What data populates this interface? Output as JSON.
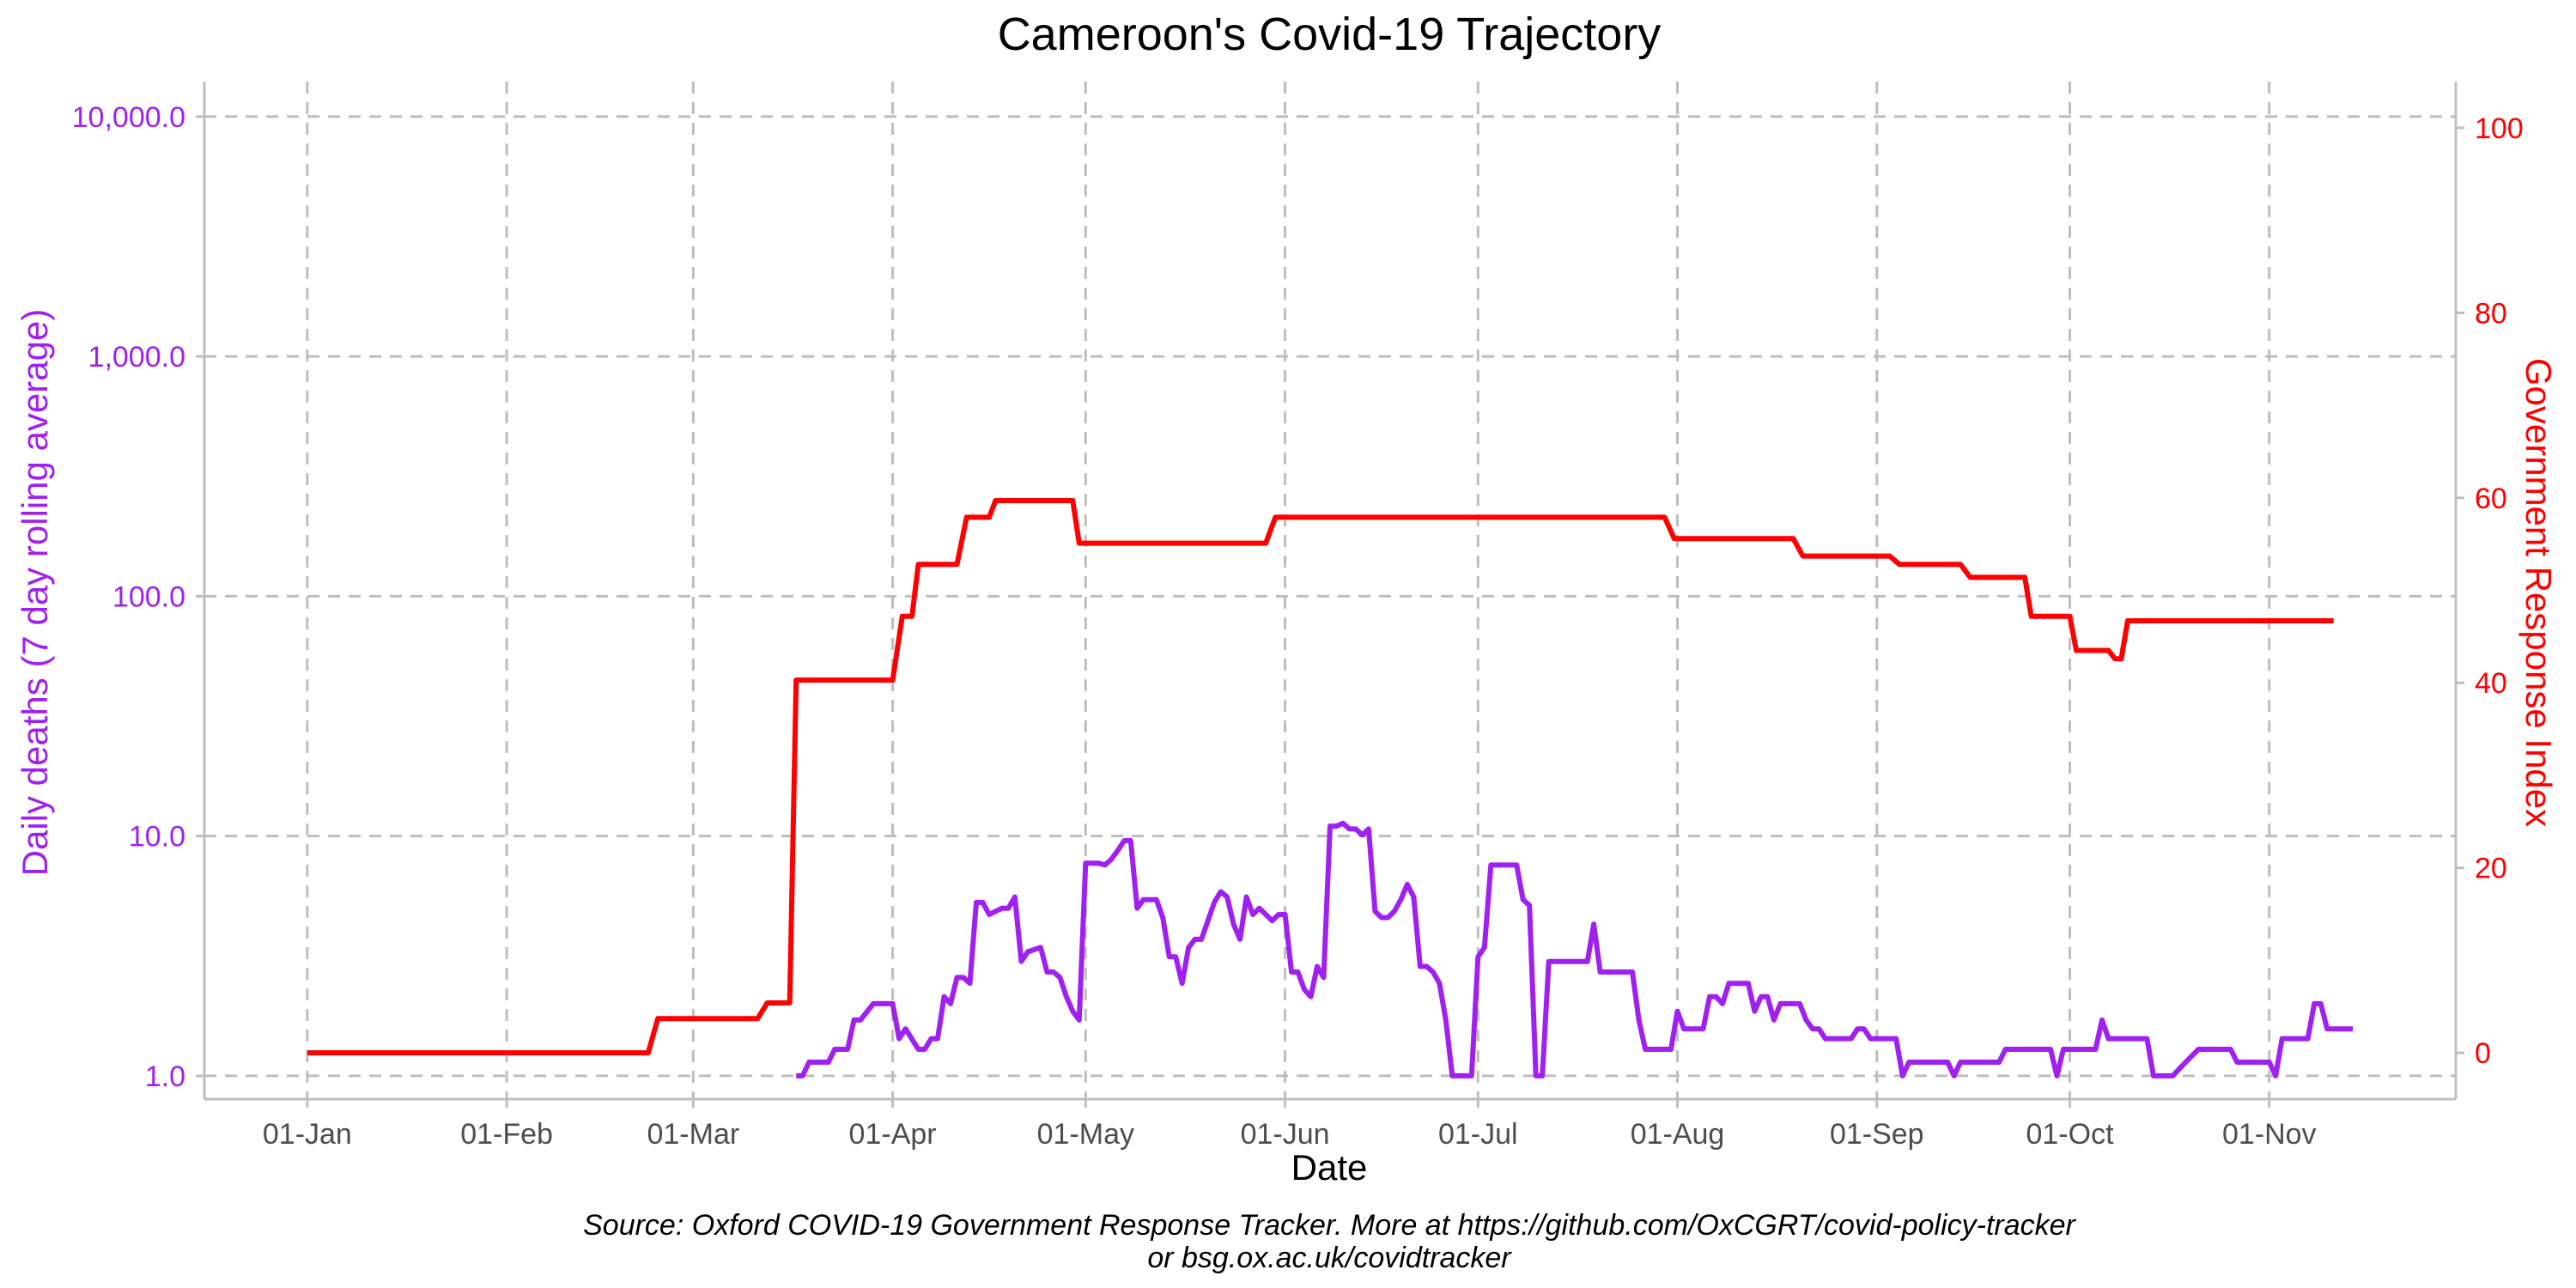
{
  "chart_data": {
    "type": "line",
    "title": "Cameroon's Covid-19 Trajectory",
    "xlabel": "Date",
    "ylabel_left": "Daily deaths (7 day rolling average)",
    "ylabel_right": "Government Response Index",
    "caption_line1": "Source: Oxford COVID-19 Government Response Tracker. More at https://github.com/OxCGRT/covid-policy-tracker",
    "caption_line2": "or bsg.ox.ac.uk/covidtracker",
    "x_ticks": [
      {
        "label": "01-Jan",
        "day": 1
      },
      {
        "label": "01-Feb",
        "day": 32
      },
      {
        "label": "01-Mar",
        "day": 61
      },
      {
        "label": "01-Apr",
        "day": 92
      },
      {
        "label": "01-May",
        "day": 122
      },
      {
        "label": "01-Jun",
        "day": 153
      },
      {
        "label": "01-Jul",
        "day": 183
      },
      {
        "label": "01-Aug",
        "day": 214
      },
      {
        "label": "01-Sep",
        "day": 245
      },
      {
        "label": "01-Oct",
        "day": 275
      },
      {
        "label": "01-Nov",
        "day": 306
      }
    ],
    "xlim_day": [
      -15,
      335
    ],
    "y_left": {
      "scale": "log10",
      "ticks": [
        {
          "value": 1,
          "label": "1.0"
        },
        {
          "value": 10,
          "label": "10.0"
        },
        {
          "value": 100,
          "label": "100.0"
        },
        {
          "value": 1000,
          "label": "1,000.0"
        },
        {
          "value": 10000,
          "label": "10,000.0"
        }
      ],
      "lim": [
        0.8,
        14000
      ]
    },
    "y_right": {
      "scale": "linear",
      "ticks": [
        0,
        20,
        40,
        60,
        80,
        100
      ],
      "lim": [
        -5,
        105
      ]
    },
    "grid": true,
    "colors": {
      "deaths": "#a020f0",
      "response": "#ff0000",
      "grid": "#bebebe",
      "axis": "#bebebe"
    },
    "series": [
      {
        "axis": "right",
        "points": [
          [
            1,
            0
          ],
          [
            54,
            0
          ],
          [
            55.5,
            3.7
          ],
          [
            71,
            3.7
          ],
          [
            72.5,
            5.4
          ],
          [
            76,
            5.4
          ],
          [
            77,
            40.3
          ],
          [
            92,
            40.3
          ],
          [
            93.5,
            47.2
          ],
          [
            95,
            47.2
          ],
          [
            96,
            52.8
          ],
          [
            102,
            52.8
          ],
          [
            103.5,
            57.9
          ],
          [
            107,
            57.9
          ],
          [
            108,
            59.7
          ],
          [
            120,
            59.7
          ],
          [
            121,
            55.1
          ],
          [
            150,
            55.1
          ],
          [
            151.5,
            57.9
          ],
          [
            212,
            57.9
          ],
          [
            213.5,
            55.6
          ],
          [
            232,
            55.6
          ],
          [
            233.5,
            53.7
          ],
          [
            247,
            53.7
          ],
          [
            248.5,
            52.8
          ],
          [
            258,
            52.8
          ],
          [
            259.5,
            51.4
          ],
          [
            268,
            51.4
          ],
          [
            269,
            47.2
          ],
          [
            275,
            47.2
          ],
          [
            276,
            43.5
          ],
          [
            281,
            43.5
          ],
          [
            282,
            42.6
          ],
          [
            283,
            42.6
          ],
          [
            284,
            46.7
          ],
          [
            316,
            46.7
          ]
        ]
      },
      {
        "axis": "left",
        "segments": [
          [
            [
              77,
              1.0
            ],
            [
              78,
              1.0
            ],
            [
              79,
              1.14
            ],
            [
              81,
              1.14
            ],
            [
              82,
              1.14
            ],
            [
              83,
              1.29
            ],
            [
              85,
              1.29
            ],
            [
              86,
              1.71
            ],
            [
              87,
              1.71
            ],
            [
              89,
              2.0
            ],
            [
              90,
              2.0
            ],
            [
              92,
              2.0
            ],
            [
              93,
              1.43
            ],
            [
              94,
              1.57
            ],
            [
              96,
              1.29
            ],
            [
              97,
              1.29
            ],
            [
              98,
              1.43
            ],
            [
              99,
              1.43
            ],
            [
              100,
              2.14
            ],
            [
              101,
              2.0
            ],
            [
              102,
              2.57
            ],
            [
              103,
              2.57
            ],
            [
              104,
              2.43
            ],
            [
              105,
              5.29
            ],
            [
              106,
              5.29
            ],
            [
              107,
              4.71
            ],
            [
              109,
              5.0
            ],
            [
              110,
              5.0
            ],
            [
              111,
              5.57
            ],
            [
              112,
              3.0
            ],
            [
              113,
              3.29
            ],
            [
              115,
              3.43
            ],
            [
              116,
              2.71
            ],
            [
              117,
              2.71
            ],
            [
              118,
              2.57
            ],
            [
              119,
              2.14
            ],
            [
              120,
              1.86
            ],
            [
              121,
              1.71
            ],
            [
              122,
              7.71
            ],
            [
              124,
              7.71
            ],
            [
              125,
              7.57
            ],
            [
              126,
              8.0
            ],
            [
              127,
              8.71
            ],
            [
              128,
              9.57
            ],
            [
              129,
              9.57
            ],
            [
              130,
              5.0
            ],
            [
              131,
              5.43
            ],
            [
              133,
              5.43
            ],
            [
              134,
              4.57
            ],
            [
              135,
              3.14
            ],
            [
              136,
              3.14
            ],
            [
              137,
              2.43
            ],
            [
              138,
              3.43
            ],
            [
              139,
              3.71
            ],
            [
              140,
              3.71
            ],
            [
              141,
              4.43
            ],
            [
              142,
              5.29
            ],
            [
              143,
              5.86
            ],
            [
              144,
              5.57
            ],
            [
              145,
              4.29
            ],
            [
              146,
              3.71
            ],
            [
              147,
              5.57
            ],
            [
              148,
              4.71
            ],
            [
              149,
              5.0
            ],
            [
              150,
              4.71
            ],
            [
              151,
              4.43
            ],
            [
              152,
              4.71
            ],
            [
              153,
              4.71
            ],
            [
              154,
              2.71
            ],
            [
              155,
              2.71
            ],
            [
              156,
              2.29
            ],
            [
              157,
              2.14
            ],
            [
              158,
              2.86
            ],
            [
              159,
              2.57
            ],
            [
              160,
              11.0
            ],
            [
              161,
              11.0
            ],
            [
              162,
              11.3
            ],
            [
              163,
              10.7
            ],
            [
              164,
              10.7
            ],
            [
              165,
              10.1
            ],
            [
              166,
              10.7
            ],
            [
              167,
              4.86
            ],
            [
              168,
              4.57
            ],
            [
              169,
              4.57
            ],
            [
              170,
              4.86
            ],
            [
              171,
              5.43
            ],
            [
              172,
              6.29
            ],
            [
              173,
              5.57
            ],
            [
              174,
              2.86
            ],
            [
              175,
              2.86
            ],
            [
              176,
              2.71
            ],
            [
              177,
              2.43
            ],
            [
              178,
              1.71
            ],
            [
              179,
              1.0
            ],
            [
              182,
              1.0
            ],
            [
              183,
              3.14
            ],
            [
              184,
              3.43
            ],
            [
              185,
              7.57
            ],
            [
              189,
              7.57
            ],
            [
              190,
              5.43
            ],
            [
              191,
              5.14
            ],
            [
              192,
              1.0
            ],
            [
              193,
              1.0
            ],
            [
              194,
              3.0
            ],
            [
              200,
              3.0
            ],
            [
              201,
              4.29
            ],
            [
              202,
              2.71
            ],
            [
              207,
              2.71
            ],
            [
              208,
              1.71
            ],
            [
              209,
              1.29
            ],
            [
              213,
              1.29
            ],
            [
              214,
              1.86
            ],
            [
              215,
              1.57
            ],
            [
              218,
              1.57
            ],
            [
              219,
              2.14
            ],
            [
              220,
              2.14
            ],
            [
              221,
              2.0
            ],
            [
              222,
              2.43
            ],
            [
              225,
              2.43
            ],
            [
              226,
              1.86
            ],
            [
              227,
              2.14
            ],
            [
              228,
              2.14
            ],
            [
              229,
              1.71
            ],
            [
              230,
              2.0
            ],
            [
              233,
              2.0
            ],
            [
              234,
              1.71
            ],
            [
              235,
              1.57
            ],
            [
              236,
              1.57
            ],
            [
              237,
              1.43
            ],
            [
              241,
              1.43
            ],
            [
              242,
              1.57
            ],
            [
              243,
              1.57
            ],
            [
              244,
              1.43
            ],
            [
              248,
              1.43
            ],
            [
              249,
              1.0
            ],
            [
              250,
              1.14
            ],
            [
              256,
              1.14
            ],
            [
              257,
              1.0
            ],
            [
              258,
              1.14
            ],
            [
              264,
              1.14
            ],
            [
              265,
              1.29
            ],
            [
              272,
              1.29
            ],
            [
              273,
              1.0
            ],
            [
              274,
              1.29
            ],
            [
              279,
              1.29
            ],
            [
              280,
              1.71
            ],
            [
              281,
              1.43
            ],
            [
              287,
              1.43
            ],
            [
              288,
              1.0
            ],
            [
              291,
              1.0
            ],
            [
              293,
              1.14
            ],
            [
              295,
              1.29
            ],
            [
              300,
              1.29
            ],
            [
              301,
              1.14
            ],
            [
              306,
              1.14
            ],
            [
              307,
              1.0
            ],
            [
              308,
              1.43
            ],
            [
              312,
              1.43
            ],
            [
              313,
              2.0
            ],
            [
              314,
              2.0
            ],
            [
              315,
              1.57
            ],
            [
              319,
              1.57
            ]
          ]
        ]
      }
    ]
  }
}
